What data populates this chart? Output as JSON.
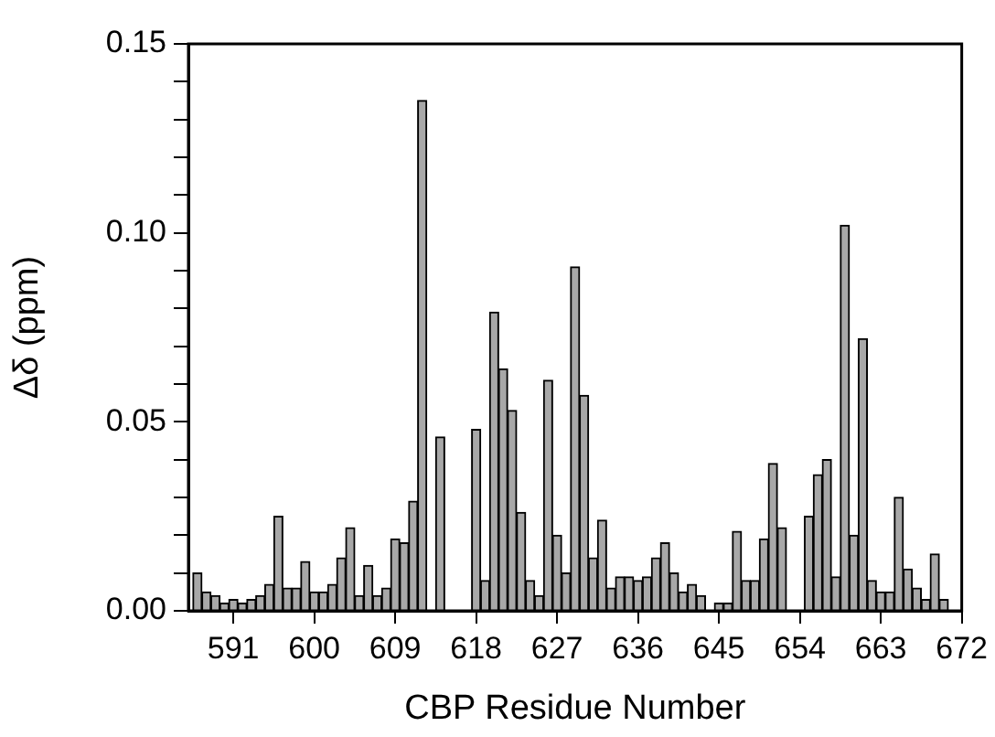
{
  "chart_data": {
    "type": "bar",
    "xlabel": "CBP Residue Number",
    "ylabel": "Δδ (ppm)",
    "x": [
      587,
      588,
      589,
      590,
      591,
      592,
      593,
      594,
      595,
      596,
      597,
      598,
      599,
      600,
      601,
      602,
      603,
      604,
      605,
      606,
      607,
      608,
      609,
      610,
      611,
      612,
      613,
      614,
      615,
      616,
      617,
      618,
      619,
      620,
      621,
      622,
      623,
      624,
      625,
      626,
      627,
      628,
      629,
      630,
      631,
      632,
      633,
      634,
      635,
      636,
      637,
      638,
      639,
      640,
      641,
      642,
      643,
      644,
      645,
      646,
      647,
      648,
      649,
      650,
      651,
      652,
      653,
      654,
      655,
      656,
      657,
      658,
      659,
      660,
      661,
      662,
      663,
      664,
      665,
      666,
      667,
      668,
      669,
      670
    ],
    "values": [
      0.01,
      0.005,
      0.004,
      0.002,
      0.003,
      0.002,
      0.003,
      0.004,
      0.007,
      0.025,
      0.006,
      0.006,
      0.013,
      0.005,
      0.005,
      0.007,
      0.014,
      0.022,
      0.004,
      0.012,
      0.004,
      0.006,
      0.019,
      0.018,
      0.029,
      0.135,
      null,
      0.046,
      null,
      null,
      null,
      0.048,
      0.008,
      0.079,
      0.064,
      0.053,
      0.026,
      0.008,
      0.004,
      0.061,
      0.02,
      0.01,
      0.091,
      0.057,
      0.014,
      0.024,
      0.006,
      0.009,
      0.009,
      0.008,
      0.009,
      0.014,
      0.018,
      0.01,
      0.005,
      0.007,
      0.004,
      null,
      0.002,
      0.002,
      0.021,
      0.008,
      0.008,
      0.019,
      0.039,
      0.022,
      null,
      null,
      0.025,
      0.036,
      0.04,
      0.009,
      0.102,
      0.02,
      0.072,
      0.008,
      0.005,
      0.005,
      0.03,
      0.011,
      0.006,
      0.003,
      0.015,
      0.003
    ],
    "color": "#a8a8a8",
    "xlim": [
      586,
      672
    ],
    "xticks": [
      591,
      600,
      609,
      618,
      627,
      636,
      645,
      654,
      663,
      672
    ],
    "ylim": [
      0,
      0.15
    ],
    "yticks": [
      {
        "value": 0,
        "label": "0.00"
      },
      {
        "value": 0.01,
        "label": null
      },
      {
        "value": 0.02,
        "label": null
      },
      {
        "value": 0.03,
        "label": null
      },
      {
        "value": 0.04,
        "label": null
      },
      {
        "value": 0.05,
        "label": "0.05"
      },
      {
        "value": 0.06,
        "label": null
      },
      {
        "value": 0.07,
        "label": null
      },
      {
        "value": 0.08,
        "label": null
      },
      {
        "value": 0.09,
        "label": null
      },
      {
        "value": 0.1,
        "label": "0.10"
      },
      {
        "value": 0.11,
        "label": null
      },
      {
        "value": 0.12,
        "label": null
      },
      {
        "value": 0.13,
        "label": null
      },
      {
        "value": 0.14,
        "label": null
      },
      {
        "value": 0.15,
        "label": "0.15"
      }
    ],
    "grid": false,
    "legend": false
  }
}
